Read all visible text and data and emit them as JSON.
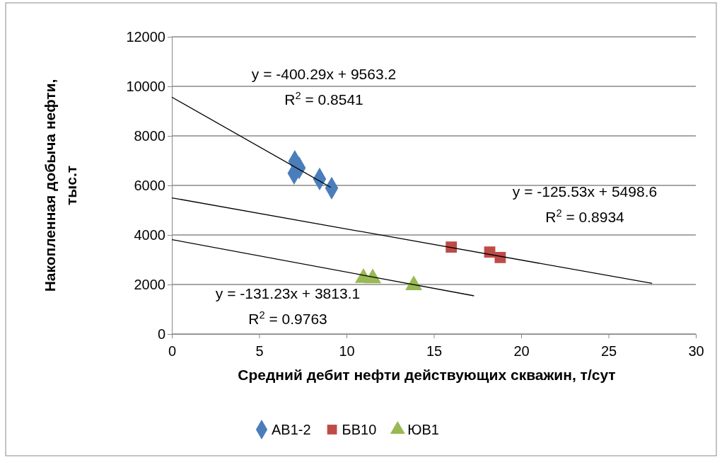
{
  "chart_data": {
    "type": "scatter",
    "xlabel": "Средний дебит нефти действующих скважин, т/сут",
    "ylabel": "Накопленная добыча нефти, тыс.т",
    "xlim": [
      0,
      30
    ],
    "xticks": [
      0,
      5,
      10,
      15,
      20,
      25,
      30
    ],
    "ylim": [
      0,
      12000
    ],
    "yticks": [
      0,
      2000,
      4000,
      6000,
      8000,
      10000,
      12000
    ],
    "grid": "y",
    "legend": "bottom",
    "series": [
      {
        "name": "АВ1-2",
        "color": "#4a7ebb",
        "marker": "diamond",
        "x": [
          7.04,
          7.29,
          7.0,
          8.46,
          9.15
        ],
        "values": [
          6970,
          6710,
          6490,
          6260,
          5890
        ]
      },
      {
        "name": "БВ10",
        "color": "#be4b48",
        "marker": "square",
        "x": [
          16.0,
          18.2,
          18.8
        ],
        "values": [
          3510,
          3310,
          3090
        ]
      },
      {
        "name": "ЮВ1",
        "color": "#98b954",
        "marker": "triangle",
        "x": [
          10.97,
          11.5,
          13.85
        ],
        "values": [
          2260,
          2250,
          1970
        ]
      },
      {
        "type": "line",
        "color": "#000000",
        "marker": "none",
        "x": [
          0,
          9.1
        ],
        "values": [
          9563.2,
          5920.6
        ]
      },
      {
        "type": "line",
        "color": "#000000",
        "marker": "none",
        "x": [
          0,
          27.5
        ],
        "values": [
          5498.6,
          2046.5
        ]
      },
      {
        "type": "line",
        "color": "#000000",
        "marker": "none",
        "x": [
          0,
          17.3
        ],
        "values": [
          3813.1,
          1542.8
        ]
      }
    ],
    "annotations": [
      "y = -400.29x + 9563.2",
      "R$^{2}$ = 0.8541",
      "y = -125.53x + 5498.6",
      "R$^{2}$ = 0.8934",
      "y = -131.23x + 3813.1",
      "R$^{2}$ = 0.9763"
    ]
  }
}
